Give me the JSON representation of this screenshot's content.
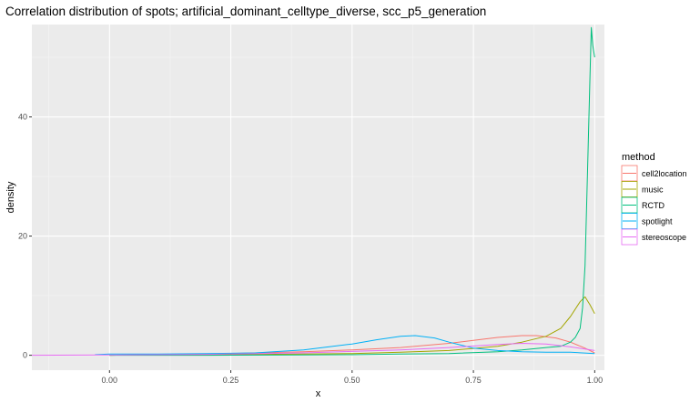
{
  "chart_data": {
    "type": "line",
    "title": "Correlation distribution of spots; artificial_dominant_celltype_diverse, scc_p5_generation",
    "xlabel": "x",
    "ylabel": "density",
    "xlim": [
      -0.16,
      1.02
    ],
    "ylim": [
      -2.5,
      55.5
    ],
    "x_ticks": [
      0.0,
      0.25,
      0.5,
      0.75,
      1.0
    ],
    "x_tick_labels": [
      "0.00",
      "0.25",
      "0.50",
      "0.75",
      "1.00"
    ],
    "y_ticks": [
      0,
      20,
      40
    ],
    "y_tick_labels": [
      "0",
      "20",
      "40"
    ],
    "grid": true,
    "legend": {
      "title": "method",
      "position": "right",
      "entries": [
        "cell2location",
        "music",
        "RCTD",
        "spotlight",
        "stereoscope"
      ]
    },
    "series": [
      {
        "name": "cell2location",
        "color": "#F8766D",
        "x": [
          0.0,
          0.1,
          0.2,
          0.3,
          0.4,
          0.5,
          0.6,
          0.7,
          0.75,
          0.8,
          0.85,
          0.88,
          0.92,
          0.95,
          0.98,
          1.0
        ],
        "y": [
          0.0,
          0.1,
          0.2,
          0.4,
          0.6,
          0.9,
          1.3,
          2.0,
          2.5,
          3.0,
          3.3,
          3.3,
          2.9,
          2.2,
          1.2,
          0.4
        ]
      },
      {
        "name": "music",
        "color": "#A3A500",
        "x": [
          0.0,
          0.2,
          0.4,
          0.5,
          0.6,
          0.7,
          0.8,
          0.85,
          0.9,
          0.93,
          0.95,
          0.97,
          0.98,
          0.99,
          1.0
        ],
        "y": [
          0.0,
          0.1,
          0.2,
          0.3,
          0.5,
          0.8,
          1.5,
          2.2,
          3.2,
          4.5,
          6.5,
          9.0,
          9.8,
          8.5,
          7.0
        ]
      },
      {
        "name": "RCTD",
        "color": "#00BF7D",
        "x": [
          0.0,
          0.2,
          0.4,
          0.5,
          0.6,
          0.7,
          0.8,
          0.85,
          0.9,
          0.93,
          0.95,
          0.96,
          0.97,
          0.975,
          0.98,
          0.985,
          0.99,
          0.993,
          0.996,
          1.0
        ],
        "y": [
          0.0,
          0.0,
          0.05,
          0.1,
          0.2,
          0.3,
          0.6,
          0.9,
          1.3,
          1.5,
          2.2,
          3.0,
          4.5,
          8.0,
          15.0,
          30.0,
          46.0,
          55.0,
          52.0,
          50.0
        ]
      },
      {
        "name": "spotlight",
        "color": "#00B0F6",
        "x": [
          -0.03,
          0.0,
          0.1,
          0.2,
          0.3,
          0.4,
          0.5,
          0.55,
          0.6,
          0.63,
          0.67,
          0.7,
          0.75,
          0.8,
          0.85,
          0.9,
          0.95,
          1.0
        ],
        "y": [
          0.1,
          0.2,
          0.2,
          0.3,
          0.4,
          0.9,
          1.9,
          2.6,
          3.2,
          3.3,
          2.9,
          2.2,
          1.2,
          0.8,
          0.6,
          0.5,
          0.5,
          0.3
        ]
      },
      {
        "name": "stereoscope",
        "color": "#E76BF3",
        "x": [
          -0.16,
          0.0,
          0.2,
          0.4,
          0.6,
          0.7,
          0.8,
          0.85,
          0.9,
          0.95,
          1.0
        ],
        "y": [
          0.0,
          0.05,
          0.15,
          0.4,
          0.9,
          1.3,
          1.8,
          2.0,
          1.9,
          1.4,
          0.8
        ]
      }
    ]
  }
}
